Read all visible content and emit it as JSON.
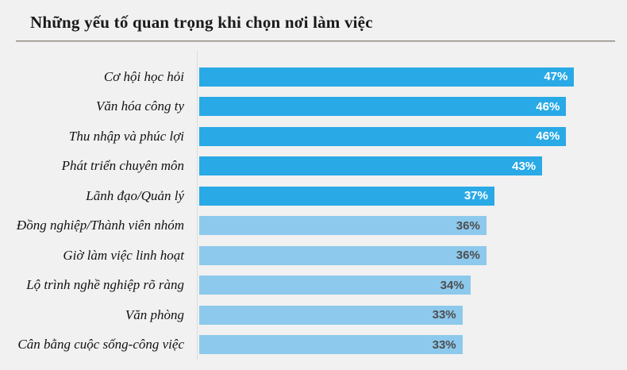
{
  "header": {
    "title": "Những yếu tố quan trọng khi chọn nơi làm việc"
  },
  "chart_data": {
    "type": "bar",
    "orientation": "horizontal",
    "title": "Những yếu tố quan trọng khi chọn nơi làm việc",
    "categories": [
      "Cơ hội học hỏi",
      "Văn hóa công ty",
      "Thu nhập và phúc lợi",
      "Phát triển chuyên môn",
      "Lãnh đạo/Quản lý",
      "Đồng nghiệp/Thành viên nhóm",
      "Giờ làm việc linh hoạt",
      "Lộ trình nghề nghiệp rõ ràng",
      "Văn phòng",
      "Cân bằng cuộc sống-công việc"
    ],
    "values": [
      47,
      46,
      46,
      43,
      37,
      36,
      36,
      34,
      33,
      33
    ],
    "value_labels": [
      "47%",
      "46%",
      "46%",
      "43%",
      "37%",
      "36%",
      "36%",
      "34%",
      "33%",
      "33%"
    ],
    "xlabel": "",
    "ylabel": "",
    "xlim": [
      0,
      50
    ],
    "grid": false,
    "legend": false,
    "value_label_position": "inside-end",
    "emphasis_split_index": 5,
    "colors": {
      "bar_primary": "#29A9E6",
      "bar_secondary": "#8DC9EC",
      "value_on_primary": "#FFFFFF",
      "value_on_secondary": "#4D4E50"
    }
  },
  "colors": {
    "background": "#F1F1F1",
    "title_text": "#1A1A1A",
    "divider": "#8B857E",
    "axis_line": "#DDDCD9"
  }
}
